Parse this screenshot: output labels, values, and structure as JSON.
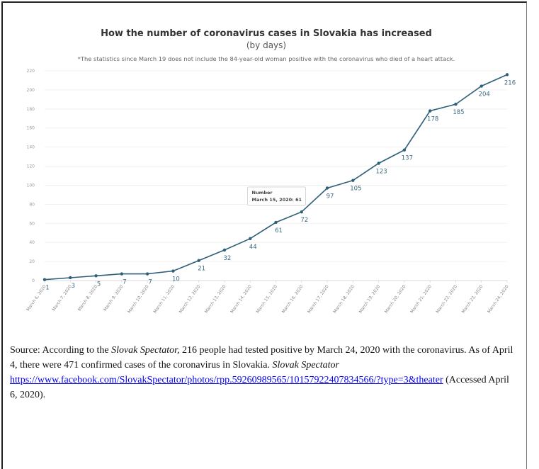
{
  "chart_data": {
    "type": "line",
    "title": "How the number of coronavirus cases in Slovakia has increased",
    "subtitle": "(by days)",
    "note": "*The statistics since March 19 does not include the 84-year-old woman positive with the coronavirus who died of a heart attack.",
    "categories": [
      "March 6, 2020",
      "March 7, 2020",
      "March 8, 2020",
      "March 9, 2020",
      "March 10, 2020",
      "March 11, 2020",
      "March 12, 2020",
      "March 13, 2020",
      "March 14, 2020",
      "March 15, 2020",
      "March 16, 2020",
      "March 17, 2020",
      "March 18, 2020",
      "March 19, 2020",
      "March 20, 2020",
      "March 21, 2020",
      "March 22, 2020",
      "March 23, 2020",
      "March 24, 2020"
    ],
    "values": [
      1,
      3,
      5,
      7,
      7,
      10,
      21,
      32,
      44,
      61,
      72,
      97,
      105,
      123,
      137,
      178,
      185,
      204,
      216
    ],
    "yticks": [
      0,
      20,
      40,
      60,
      80,
      100,
      120,
      140,
      160,
      180,
      200,
      220
    ],
    "ylim": [
      0,
      220
    ],
    "grid": true,
    "line_color": "#2f5f7a",
    "tooltip": {
      "title": "Number",
      "text": "March 15, 2020: 61"
    }
  },
  "source": {
    "prefix": "Source: According to the ",
    "publication": "Slovak Spectator,",
    "text1": " 216 people had tested positive by March 24, 2020 with the coronavirus.  As of April 4, there were 471 confirmed cases of the coronavirus in Slovakia. ",
    "publication2": "Slovak Spectator",
    "link": "https://www.facebook.com/SlovakSpectator/photos/rpp.59260989565/10157922407834566/?type=3&theater",
    "suffix": " (Accessed April 6, 2020)."
  }
}
